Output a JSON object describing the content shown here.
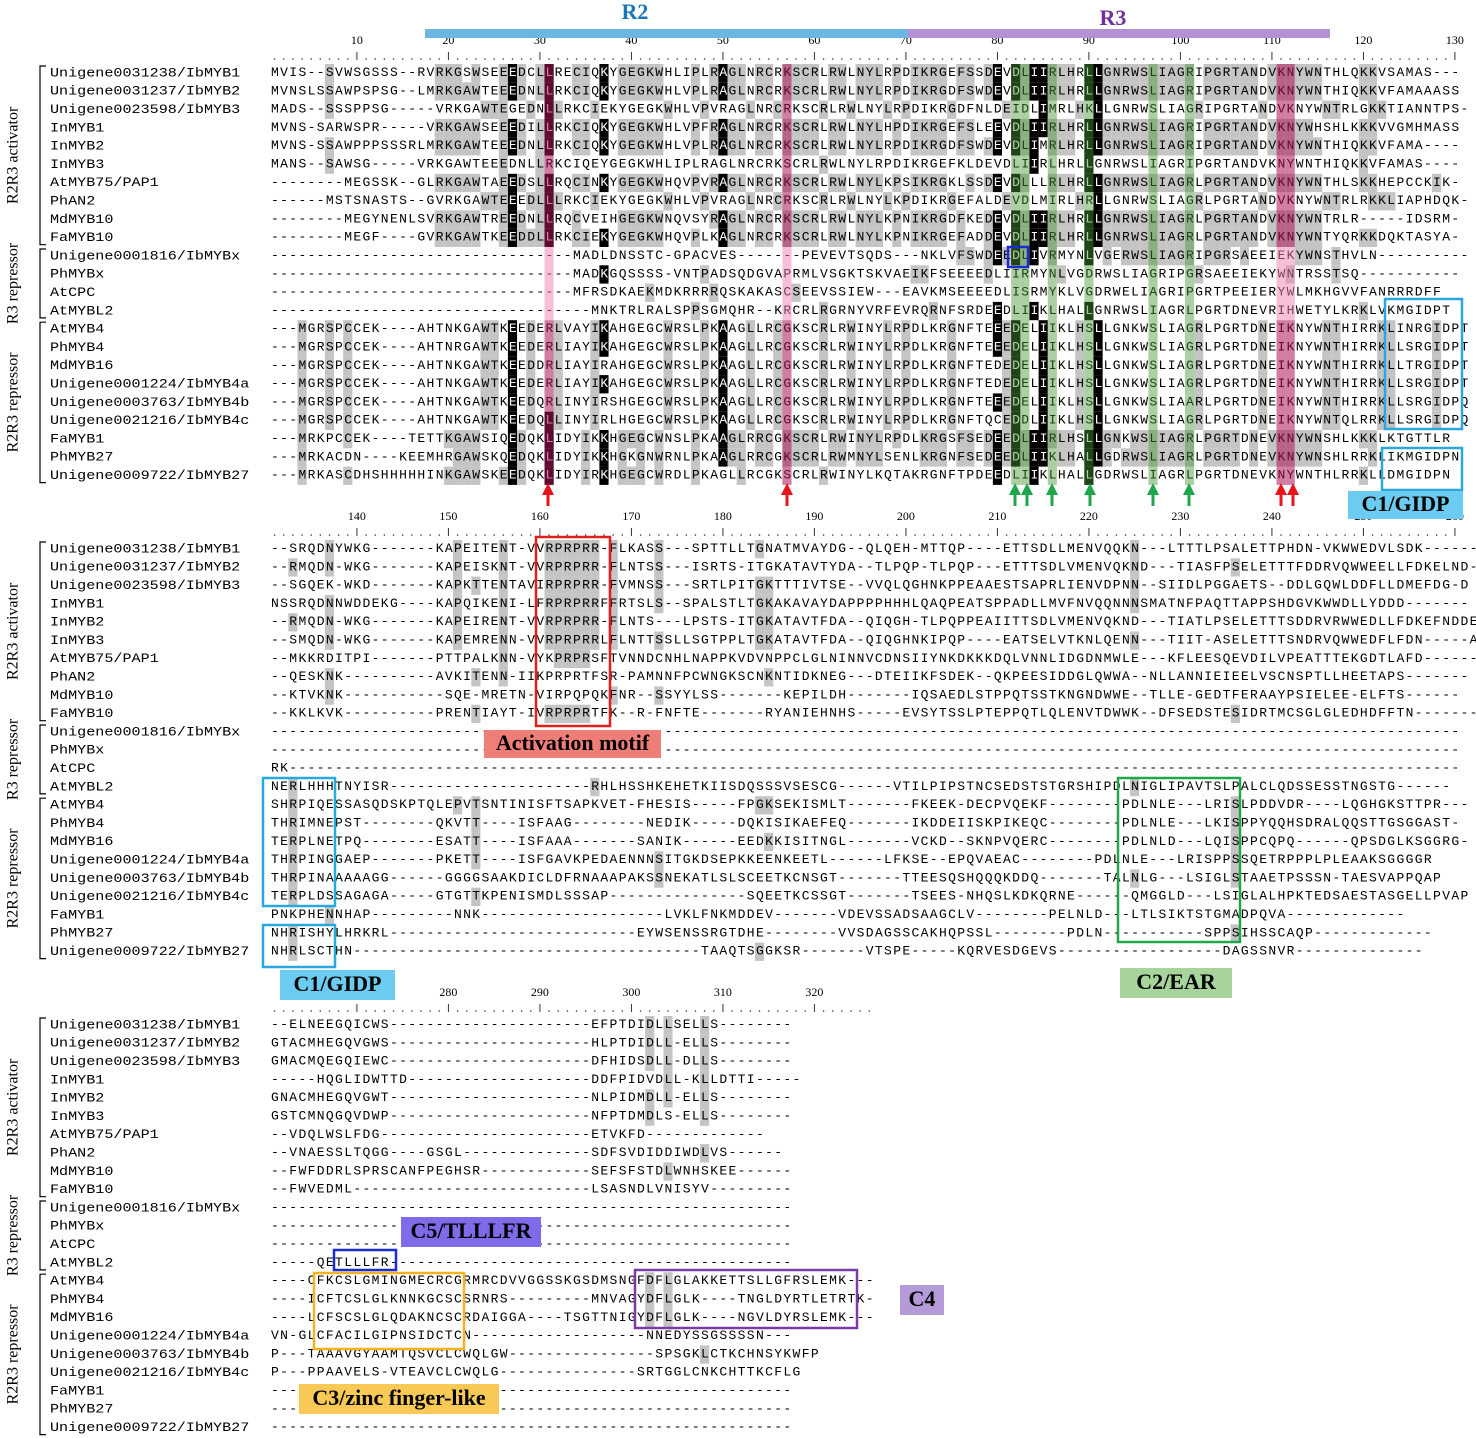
{
  "header": {
    "r2": "R2",
    "r3": "R3"
  },
  "groups": [
    "R2R3 activator",
    "R3 repressor",
    "R2R3 repressor"
  ],
  "names": [
    "Unigene0031238/IbMYB1",
    "Unigene0031237/IbMYB2",
    "Unigene0023598/IbMYB3",
    "InMYB1",
    "InMYB2",
    "InMYB3",
    "AtMYB75/PAP1",
    "PhAN2",
    "MdMYB10",
    "FaMYB10",
    "Unigene0001816/IbMYBx",
    "PhMYBx",
    "AtCPC",
    "AtMYBL2",
    "AtMYB4",
    "PhMYB4",
    "MdMYB16",
    "Unigene0001224/IbMYB4a",
    "Unigene0003763/IbMYB4b",
    "Unigene0021216/IbMYB4c",
    "FaMYB1",
    "PhMYB27",
    "Unigene0009722/IbMYB27"
  ],
  "blocks": [
    {
      "ruler": [
        10,
        20,
        30,
        40,
        50,
        60,
        70,
        80,
        90,
        100,
        110,
        120,
        130
      ],
      "seqs": [
        "MVIS--SVWSGSSS--RVRKGSWSEEEDCLLRECIQKYGEGKWHLIPLRAGLNRCRKSCRLRWLNYLRPDIKRGEFSSDEVDLIIRLHRLLGNRWSLIAGRIPGRTANDVKNYWNTHLQKKVSAMAS---",
        "MVNSLSSAWPSPSG--LMRKGAWTEEEDNLLRKCIQKYGEGKWHLVPLRAGLNRCRKSCRLRWLNYLRPDIKRGDFSWDEVDLIIRLHRLLGNRWSLIAGRIPGRTANDVKNYWNTHIQKKVFAMAAASS",
        "MADS--SSSPPSG-----VRKGAWTEGEDNLLRKCIEKYGEGKWHLVPVRAGLNRCRKSCRLRWLNYLRPDIKRGDFNLDEIDLIMRLHKLLGNRWSLIAGRIPGRTANDVKNYWNTRLGKKTIANNTPS-",
        "MVNS-SARWSPR-----VRKGAWSEEEDILLRKCIQKYGEGKWHLVPFRAGLNRCRKSCRLRWLNYLHPDIKRGEFSLEEVDLIIRLHRLLGNRWSLIAGRIPGRTANDVKNYWHSHLKKKVVGMHMASS",
        "MVNS-SSAWPPPSSSRLMRKGAWTEEEDNLLRKCIQKYGEGKWHLVPLRAGLNRCRKSCRLRWLNYLRPDIKRGDFSWDEVDLIMRLHRLLGNRWSLIAGRIPGRTANDVKNYWNTHIQKKVFAMA----",
        "MANS--SAWSG-----VRKGAWTEEEDNLLRKCIQEYGEGKWHLIPLRAGLNRCRKSCRLRWLNYLRPDIKRGEFKLDEVDLIIRLHRLLGNRWSLIAGRIPGRTANDVKNYWNTHIQKKVFAMAS----",
        "--------MEGSSK--GLRKGAWTAEEDSLLRQCINKYGEGKWHQVPVRAGLNRCRKSCRLRWLNYLKPSIKRGKLSSDEVDLLLRLHRLLGNRWSLIAGRLPGRTANDVKNYWNTHLSKKHEPCCKIK-",
        "------MSTSNASTS--GVRKGAWTEEEDLLLRKCIEKYGEGKWHLVPVRAGLNRCRKSCRLRWLNYLKPDIKRGEFALDEVDLMIRLHRLLGNRWSLIAGRLPGRTANDVKNYWNTRLRKKLIAPHDQK-",
        "--------MEGYNENLSVRKGAWTREEDNLLRQCVEIHGEGKWNQVSYRAGLNRCRKSCRLRWLNYLKPNIKRGDFKEDEVDLIIRLHRLLGNRWSLIAGRLPGRTANDVKNYWNTRLR-----IDSRM-",
        "--------MEGF----GVRKGAWTKEEDDLLRKCIEKYGEGKWHQVPLKAGLNRCRKSCRLRWLNYLKPNIKRGEFADDEVDLIIRLHRLLGNRWSLIAGRLPGRTANDVKNYWNTYQRKKDQKTASYA-",
        "---------------------------------MADLDNSSTC-GPACVES-------PEVEVTSQDS---NKLVFSWDEEDLIVRMYNLVGERWSLIAGRIPGRSAEEIEKYWNSTHVLN----------",
        "---------------------------------MADKGQSSSS-VNTPADSQDGVAPRMLVSGKTSKVAEIKFSEEEEDLIIRMYNLVGDRWSLIAGRIPGRSAEEIEKYWNTRSSTSQ-----------",
        "---------------------------------MFRSDKAEKMDKRRRRQSKAKASCSEEVSSIEW---EAVKMSEEEEDLISRMYKLVGDRWELIAGRIPGRTPEEIERYWLMKHGVVFANRRRDFF",
        "-----------------------------------MNKTRLRALSPPSGMQHR--KRCRLRGRNYVRFEVRQRNFSRDEEDLIIKLHALLGNRWSLIAGRLPGRTDNEVRIHWETYLKRKLVKMGIDPT",
        "---MGRSPCCEK----AHTNKGAWTKEEDERLVAYIKAHGEGCWRSLPKAAGLLRCGKSCRLRWINYLRPDLKRGNFTEEEDELIIKLHSLLGNKWSLIAGRLPGRTDNEIKNYWNTHIRRKLINRGIDPT",
        "---MGRSPCCEK----AHTNRGAWTKEEDERLIAYIKAHGEGCWRSLPKAAGLLRCGKSCRLRWINYLRPDLKRGNFTEEEDELIIKLHSLLGNKWSLIAGRLPGRTDNEIKNYWNTHIRRKLLSRGIDPT",
        "---MGRSPCCEK----AHTNKGAWTKEEDDRLIAYIRAHGEGCWRSLPKAAGLLRCGKSCRLRWINYLRPDLKRGNFTEDEDELIIKLHSLLGNKWSLIAGRLPGRTDNEIKNYWNTHIRRKLLTRGIDPT",
        "---MGRSPCCEK----AHTNKGAWTKEEDERLIAYIKAHGEGCWRSLPKAAGLLRCGKSCRLRWINYLRPDLKRGNFTEDEDELIIKLHSLLGNKWSLIAGRLPGRTDNEIKNYWNTHIRRKLLSRGIDPT",
        "---MGRSPCCEK----AHTNKGAWTKEEDQRLINYIRSHGEGCWRSLPKAAGLLRCGKSCRLRWINYLRPDLKRGNFTEEEDELIIKLHSLLGNKWSLIAARLPGRTDNEIKNYWNTHIRRKLLSRGIDPQ",
        "---MGRSPCCEK----AHTNKGAWTKEEDQLLINYIRLHGEGCWRSLPKAAGLLRCGKSCRLRWINYLRPDLKRGNFTQCEDDLIIKLHSLLGNKWSLIAGRLPGRTDNEIKNYWNTQLRRKLLSRGIDPQ",
        "---MRKPCCEK----TETTKGAWSIQEDQKLIDYIKKHGEGCWNSLPKAAGLRRCGKSCRLRWINYLRPDLKRGSFSEDEEDLIIRLHSLLGNKWSLIAGRLPGRTDNEVKNYWNSHLKKKLKTGTTLR",
        "---MRKACDN----KEEMHRGAWSKQEDQKLIDYIKKHGKGNWRNLPKAAGLRRCGKSCRLRWMNYLSENLKRGNFSEDEEDLIIKLHALLGDRWSLIAGRLPGRTDNEVKNYWNSHLRRKLIKMGIDPN",
        "---MRKASCDHSHHHHHINKGAWSKEEDQKLIDYIRKHGEGCWRDLPKAGLLRCGKSCRLRWINYLKQTAKRGNFTPDEEDLIIKLHALLGDRWSLIAGRLPGRTDNEVKNYWNTHLRRKLLDMGIDPN"
      ]
    },
    {
      "ruler": [
        140,
        150,
        160,
        170,
        180,
        190,
        200,
        210,
        220,
        230,
        240,
        250,
        260
      ],
      "seqs": [
        "--SRQDNYWKG-------KAPEITENT-VVRPRPRR-FLKASS---SPTTLLTGNATMVAYDG--QLQEH-MTTQP----ETTSDLLMENVQQKN---LTTTLPSALETTPHDN-VKWWEDVLSDK------",
        "--RMQDN-WKG-------KAPEISKNT-VVRPRPRR-FLNTSS---ISRTS-ITGKATAVTYDA--TLPQP-TLPQP---ETTTSDLVMENVQKND---TIASFPSELETTTFDDRVQWWEELLFDKELND-E",
        "--SGQEK-WKD-------KAPKTTENTAVIRPRPRR-FVMNSS---SRTLPITGKTTTIVTSE--VVQLQGHNKPPEAAESTSAPRLIENVDPNN--SIIDLPGGAETS--DDLGQWLDDFLLDMEFDG-D",
        "NSSRQDNNWDDEKG----KAPQIKENI-LFRPRPRRFFRTSLS--SPALSTLTGKAKAVAYDAPPPPHHHLQAQPEATSPPADLLMVFNVQQNNNSMATNFPAQTTAPPSHDGVKWWDLLYDDD-------",
        "--RMQDN-WKG-------KAPEIRENT-VVRPRPRR-FLNTS---LPSTS-ITGKATAVTFDA--QIQGH-TLPQPPEAIITTSDLVMENVQKND---TIATLPSELETTTSDDRVRWWEDLLFDKEFNDDE",
        "--SMQDN-WKG-------KAPEMRENN-VVRPRPRRLFLNTTSSLLSGTPPLTGKATAVTFDA--QIQGHNKIPQP----EATSELVTKNLQENN---TIIT-ASELETTTSNDRVQWWEDFLFDN-----A",
        "--MKKRDITPI-------PTTPALKNN-VYKPRPRSFTVNNDCNHLNAPPKVDVNPPCLGLNINNVCDNSIIYNKDKKKDQLVNNLIDGDNMWLE---KFLEESQEVDILVPEATTTEKGDTLAFD------",
        "--QESKNK----------AVKITENN-IIKPRPRTFSR-PAMNNFPCWNGKSCNKNTIDKNEG---DTEIIKFSDEK--QKPEESIDDGLQWWA--NLLANNIEIEELVSCNSPTLLHEETAPS-------",
        "--KTVKNK-----------SQE-MRETN-VIRPQPQKFNR--SSYYLSS-------KEPILDH-------IQSAEDLSTPPQTSSTKNGNDWWE--TLLE-GEDTFERAAYPSIELEE-ELFTS------",
        "--KKLKVK----------PRENTIAYT-IVRPRPRTFK--R-FNFTE-------RYANIEHNHS-----EVSYTSSLPTEPPQTLQLENVTDWWK--DFSEDSTESIDRTMCSGLGLEDHDFFTN-------",
        "----------------------------------------------------------------------------------------------------------------------------------",
        "----------------------------------------------------------------------------------------------------------------------------------",
        "RK--------------------------------------------------------------------------------------------------------------------------------",
        "NERLHHHTNYISR----------------------RHLHSSHKEHETKIISDQSSSVSESCG------VTILPIPSTNCSEDSTSTGRSHIPDLNIGLIPAVTSLPALCLQDSSESSTNGSTG------",
        "SHRPIQESSASQDSKPTQLEPVTSNTINISFTSAPKVET-FHESIS-----FPGKSEKISMLT-------FKEEK-DECPVQEKF--------PDLNLE---LRISLPDDVDR----LQGHGKSTTPR---",
        "THRIMNEPST--------QKVTT----ISFAAG--------NEDIK-----DQKISIKAEFEQ-------IKDDEIISKPIKEQC--------PDLNLE---LKISPPYQQHSDRALQQSTTGSGGAST-",
        "TERPLNETPQ--------ESATT----ISFAAA-------SANIK------EEDKKISITNGL-------VCKD--SKNPVQERC--------PDLNLD---LQISPPCQPQ------QPSDGLKSGGRG-",
        "THRPINGGAEP-------PKETT----ISFGAVKPEDAENNNSITGKDSEPKKEENKEETL------LFKSE--EPQVAEAC--------PDLNLE---LRISPPSSQETRPPPLPLEAAKSGGGGR",
        "THRPINAAAAAGG------GGGGSAAKDICLDFRNAAAPAKSSNEKATLSLSCEETKCNSGT-------TTEESQSHQQQKDDQ-------TALNLG---LSIGLSTAAETPSSSN-TAESVAPPQAP",
        "TERPLDSSAGAGA-----GTGTTKPENISMDLSSSAP---------------SQEETKCSSGT-------TSEES-NHQSLKDKQRNE------QMGGLD---LSIGLALHPKTEDSAESTASGELLPVAP",
        "PNKPHENNHAP---------NNK--------------------LVKLFNKMDDEV-------VDEVSSADSAAGCLV--------PELNLD---LTLSIKTSTGMADPQVA-------------",
        "NHRISHYLHRKRL---------------------------EYWSENSSRGTDHE--------VVSDAGSSCAKHQPSSL--------PDLN-----------SPPSIHSSCAQP-------------",
        "NHRLSCTHN--------------------------------------TAAQTSGGKSR-------VTSPE-----KQRVESDGEVS------------------DAGSSNVR--------------"
      ]
    },
    {
      "ruler": [
        270,
        280,
        290,
        300,
        310,
        320
      ],
      "seqs": [
        "--ELNEEGQICWS----------------------EFPTDIDLLSELLS--------",
        "GTACMHEGQVGWS----------------------HLPTDIDLL-ELLS--------",
        "GMACMQEGQIEWC----------------------DFHIDSDLL-DLLS--------",
        "-----HQGLIDWTTD--------------------DDFPIDVDLL-KLLDTTI-----",
        "GNACMHEGQVGWT----------------------NLPIDMDLL-ELLS--------",
        "GSTCMNQGQVDWP----------------------NFPTDMDLS-ELLS--------",
        "--VDQLWSLFDG-----------------------ETVKFD-------------",
        "--VNAESSLTQGG----GSGL--------------SDFSVDIDDIWDLVS------",
        "--FWFDDRLSPRSCANFPEGHSR------------SEFSFSTDLWNHSKEE------",
        "--FWVEDML--------------------------LSASNDLVNISYV---------",
        "---------------------------------------------------------",
        "---------------------------------------------------------",
        "---------------------------------------------------------",
        "-----QETLLLFR--------------------------------------------",
        "----CFKCSLGMINGMECRCGRMRCDVVGGSSKGSDMSNGFDFLGLAKKETTSLLGFRSLEMK---",
        "----ICFTCSLGLKNNKGCSCSRNRS---------MNVAGYDFLGLK----TNGLDYRTLETRTK-",
        "----LCFSCSLGLQDAKNCSCRDAIGGA----TSGTTNIGYDFLGLK----NGVLDYRSLEMK---",
        "VN-GLCFACILGIPNSIDCTCN-------------------NNEDYSSGSSSSN---",
        "P---TAAAVGYAAMTQSVCLCWQLGW----------------SPSGKLCTKCHNSYKWFP",
        "P---PPAAVELS-VTEAVCLCWQLG---------------SRTGGLCNKCHTTKCFLG",
        "---------------------------------------------------------",
        "---------------------------------------------------------",
        "---------------------------------------------------------"
      ]
    }
  ],
  "motifs": {
    "c1_top": "C1/GIDP",
    "activation": "Activation motif",
    "c1_mid": "C1/GIDP",
    "c2": "C2/EAR",
    "c5": "C5/TLLLFR",
    "c4": "C4",
    "c3": "C3/zinc finger-like"
  }
}
